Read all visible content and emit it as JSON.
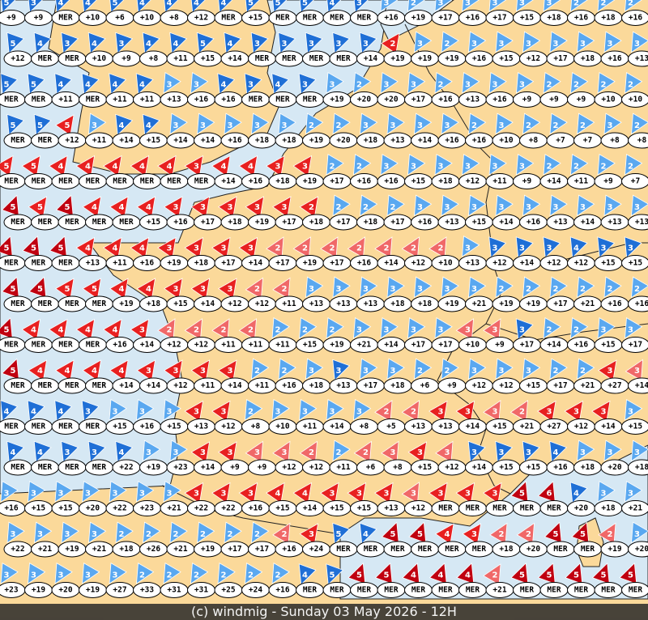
{
  "footer": {
    "caption": "(c) windmig - Sunday 03 May 2026 - 12H"
  },
  "colors": {
    "land": "#fbd99a",
    "sea": "#d6e8f4",
    "border": "#222222",
    "wind_strong_blue": "#1f6fd6",
    "wind_light_blue": "#5aa8f0",
    "wind_red": "#e82020",
    "wind_pink": "#f06868",
    "wind_dark_red": "#c00010"
  },
  "stations": [
    [
      "+9/5b",
      "+9/3b",
      "MER/4b",
      "+10/4b",
      "+6/5b",
      "+10/4b",
      "+8/4b",
      "+12/4b",
      "MER/4b",
      "+15/5b",
      "MER/5b",
      "MER/5b",
      "MER/4b",
      "MER/3b",
      "+16/3l",
      "+19/2l",
      "+17/3l",
      "+16/3l",
      "+17/3l",
      "+15/3l",
      "+18/3l",
      "+16/2l",
      "+18/2l",
      "+16/2l"
    ],
    [
      "+12/5b",
      "MER/4b",
      "MER/3b",
      "+10/4b",
      "+9/3b",
      "+8/4b",
      "+11/4b",
      "+15/5b",
      "+14/4b",
      "MER/3b",
      "MER/3b",
      "MER/3b",
      "MER/3b",
      "+14/3b",
      "+19/2r",
      "+19/3l",
      "+19/2l",
      "+16/3l",
      "+15/3l",
      "+12/3l",
      "+17/3l",
      "+18/3l",
      "+16/3l",
      "+13/3l"
    ],
    [
      "MER/5b",
      "MER/5b",
      "+11/4b",
      "MER/4b",
      "+11/4b",
      "+11/4b",
      "+13/3l",
      "+16/3l",
      "+16/4b",
      "MER/3b",
      "MER/4b",
      "MER/3b",
      "+19/3l",
      "+20/2l",
      "+20/3l",
      "+17/3l",
      "+16/2l",
      "+13/3l",
      "+16/3l",
      "+9/3l",
      "+9/2l",
      "+9/2l",
      "+10/2l",
      "+10/2l"
    ],
    [
      "MER/5b",
      "MER/5b",
      "+12/5r",
      "+11/3l",
      "+14/4b",
      "+15/4b",
      "+14/3l",
      "+14/3l",
      "+16/3l",
      "+18/3l",
      "+18/3l",
      "+19/2l",
      "+20/2l",
      "+18/3l",
      "+13/3l",
      "+14/3l",
      "+16/3l",
      "+16/2l",
      "+10/3l",
      "+8/2l",
      "+7/2l",
      "+7/2l",
      "+8/3l",
      "+8/2l"
    ],
    [
      "MER/5r",
      "MER/5r",
      "MER/4r",
      "MER/4r",
      "MER/4r",
      "MER/4r",
      "MER/4r",
      "MER/3r",
      "+14/4r",
      "+16/4r",
      "+18/3r",
      "+19/3r",
      "+17/2l",
      "+16/2l",
      "+16/3l",
      "+15/3l",
      "+18/3l",
      "+12/3l",
      "+11/3l",
      "+9/3l",
      "+14/2l",
      "+11/2l",
      "+9/2l",
      "+7/2l"
    ],
    [
      "MER/5d",
      "MER/5r",
      "MER/5d",
      "MER/4r",
      "MER/4r",
      "+15/4r",
      "+16/3r",
      "+17/3r",
      "+18/3r",
      "+19/3r",
      "+17/3r",
      "+18/2r",
      "+17/2l",
      "+18/2l",
      "+17/2l",
      "+16/3l",
      "+13/3l",
      "+15/3l",
      "+14/3l",
      "+16/3l",
      "+13/3l",
      "+14/3l",
      "+13/3l",
      "+13/3l"
    ],
    [
      "MER/5d",
      "MER/5d",
      "MER/5d",
      "+13/4r",
      "+11/4r",
      "+16/4r",
      "+19/3r",
      "+18/3r",
      "+17/3r",
      "+14/3r",
      "+17/2p",
      "+19/2p",
      "+17/2p",
      "+16/2p",
      "+14/2p",
      "+12/2p",
      "+10/2p",
      "+13/3l",
      "+12/3b",
      "+14/3b",
      "+12/3b",
      "+12/4b",
      "+15/3b",
      "+15/3b"
    ],
    [
      "MER/5d",
      "MER/5d",
      "MER/5r",
      "MER/5r",
      "+19/4r",
      "+18/4r",
      "+15/3r",
      "+14/3r",
      "+12/3r",
      "+12/2p",
      "+11/2p",
      "+13/3l",
      "+13/3l",
      "+13/3l",
      "+18/3l",
      "+18/3l",
      "+19/3l",
      "+21/3l",
      "+19/2l",
      "+19/2l",
      "+17/2l",
      "+21/2l",
      "+16/2l",
      "+16/2l"
    ],
    [
      "MER/5d",
      "MER/4r",
      "MER/4r",
      "MER/4r",
      "+16/4r",
      "+14/3r",
      "+12/2p",
      "+12/2p",
      "+11/2p",
      "+11/2p",
      "+11/2l",
      "+15/2l",
      "+19/2l",
      "+21/3l",
      "+14/3l",
      "+17/3l",
      "+17/3l",
      "+10/3p",
      "+9/3p",
      "+17/3b",
      "+14/2l",
      "+16/2l",
      "+15/3l",
      "+17/3l"
    ],
    [
      "MER/5d",
      "MER/4r",
      "MER/4r",
      "MER/4r",
      "+14/4r",
      "+14/3r",
      "+12/3r",
      "+11/3r",
      "+14/3r",
      "+11/2l",
      "+16/2l",
      "+18/3l",
      "+13/3b",
      "+17/3l",
      "+18/3l",
      "+6/2l",
      "+9/2l",
      "+12/3l",
      "+12/3l",
      "+15/3l",
      "+17/2l",
      "+21/2l",
      "+27/3r",
      "+14/3p"
    ],
    [
      "MER/4b",
      "MER/4b",
      "MER/4b",
      "MER/3b",
      "+15/3l",
      "+16/3l",
      "+15/3l",
      "+13/3r",
      "+12/3r",
      "+8/2l",
      "+10/3l",
      "+11/3l",
      "+14/3l",
      "+8/3l",
      "+5/2p",
      "+13/2p",
      "+13/3r",
      "+14/3r",
      "+15/3p",
      "+21/2p",
      "+27/3r",
      "+12/3r",
      "+14/3r",
      "+15/3l"
    ],
    [
      "MER/4b",
      "MER/4b",
      "MER/3b",
      "MER/3b",
      "+22/4b",
      "+19/3l",
      "+23/3l",
      "+14/3r",
      "+9/3r",
      "+9/3p",
      "+12/3p",
      "+12/2p",
      "+11/2l",
      "+6/2p",
      "+8/3p",
      "+15/3r",
      "+12/3p",
      "+14/3b",
      "+15/3b",
      "+15/3b",
      "+16/4b",
      "+18/3l",
      "+20/3l",
      "+18/3l"
    ],
    [
      "+16/3l",
      "+15/3l",
      "+15/3l",
      "+20/3l",
      "+22/3l",
      "+23/3l",
      "+21/3l",
      "+22/3r",
      "+22/3r",
      "+16/3r",
      "+15/4r",
      "+14/4r",
      "+15/3r",
      "+15/3r",
      "+13/3r",
      "+12/3p",
      "MER/3r",
      "MER/3r",
      "MER/3r",
      "MER/5d",
      "MER/6d",
      "+20/4b",
      "+18/3l",
      "+21/3l"
    ],
    [
      "+22/3l",
      "+21/3l",
      "+19/3l",
      "+21/3l",
      "+18/2l",
      "+26/2l",
      "+21/2l",
      "+19/2l",
      "+17/2l",
      "+17/2l",
      "+16/2p",
      "+24/3r",
      "MER/5b",
      "MER/4b",
      "MER/5d",
      "MER/5d",
      "MER/4r",
      "MER/3r",
      "+18/2p",
      "+20/2p",
      "MER/5d",
      "MER/5d",
      "+19/2p",
      "+20/3l"
    ],
    [
      "+23/3l",
      "+19/3l",
      "+20/3l",
      "+19/3l",
      "+27/3l",
      "+33/2l",
      "+31/2l",
      "+31/2l",
      "+25/2l",
      "+24/2l",
      "+16/2l",
      "MER/4b",
      "MER/5b",
      "MER/5d",
      "MER/5d",
      "MER/4d",
      "MER/4d",
      "MER/4d",
      "+21/2p",
      "MER/5d",
      "MER/5d",
      "MER/5d",
      "MER/5d",
      "MER/5d"
    ]
  ]
}
